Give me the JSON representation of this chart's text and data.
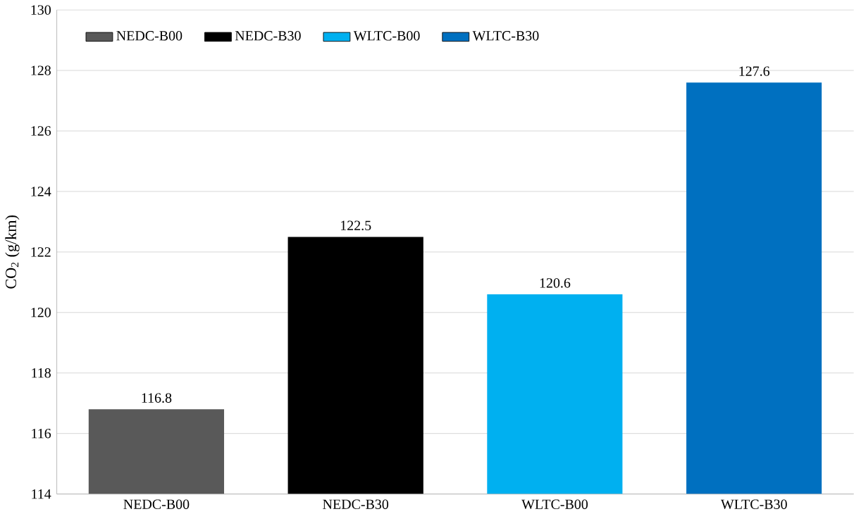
{
  "chart_data": {
    "type": "bar",
    "categories": [
      "NEDC-B00",
      "NEDC-B30",
      "WLTC-B00",
      "WLTC-B30"
    ],
    "series": [
      {
        "name": "NEDC-B00",
        "color": "#595959",
        "values": [
          116.8,
          null,
          null,
          null
        ]
      },
      {
        "name": "NEDC-B30",
        "color": "#000000",
        "values": [
          null,
          122.5,
          null,
          null
        ]
      },
      {
        "name": "WLTC-B00",
        "color": "#00b0f0",
        "values": [
          null,
          null,
          120.6,
          null
        ]
      },
      {
        "name": "WLTC-B30",
        "color": "#0070c0",
        "values": [
          null,
          null,
          null,
          127.6
        ]
      }
    ],
    "ylabel": "CO$_{2}$ (g/km)",
    "ylim": [
      114,
      130
    ],
    "yticks": [
      114,
      116,
      118,
      120,
      122,
      124,
      126,
      128,
      130
    ],
    "grid": "y",
    "legend": "top left",
    "data_labels": true
  }
}
